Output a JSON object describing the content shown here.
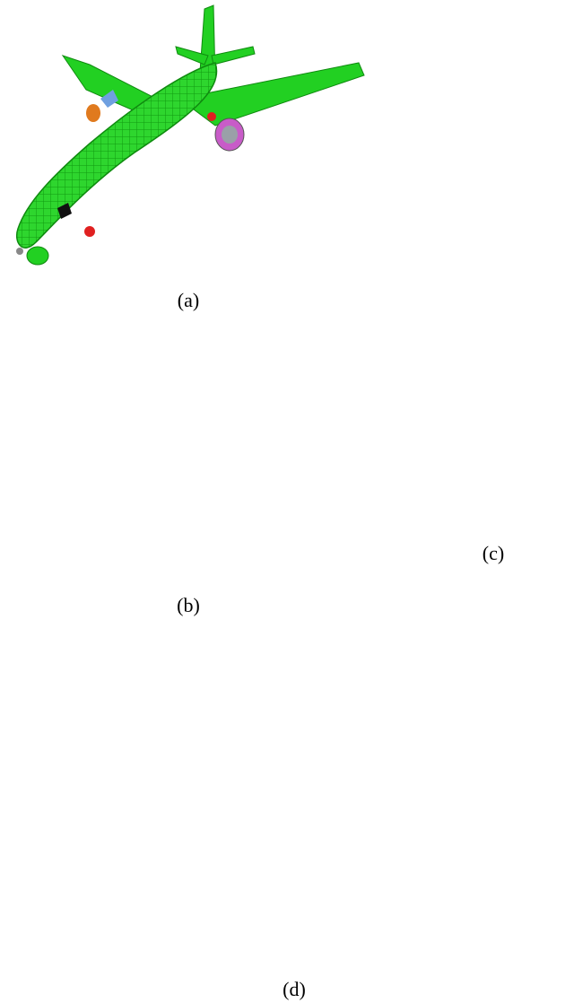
{
  "figure": {
    "captions": {
      "a": "(a)",
      "b": "(b)",
      "c": "(c)",
      "d": "(d)"
    },
    "colors": {
      "airplane": "#22d022",
      "airplane_dark": "#129012",
      "isosurface": "#d9b35c",
      "isosurface_dark": "#6b4a14",
      "statue": "#bdbdbd",
      "statue_dark": "#1c1c1c",
      "terrain": "#4f6b34",
      "water": "#3f6fe0",
      "sky": "#5a86c8",
      "foliage": "#8fb044"
    }
  }
}
